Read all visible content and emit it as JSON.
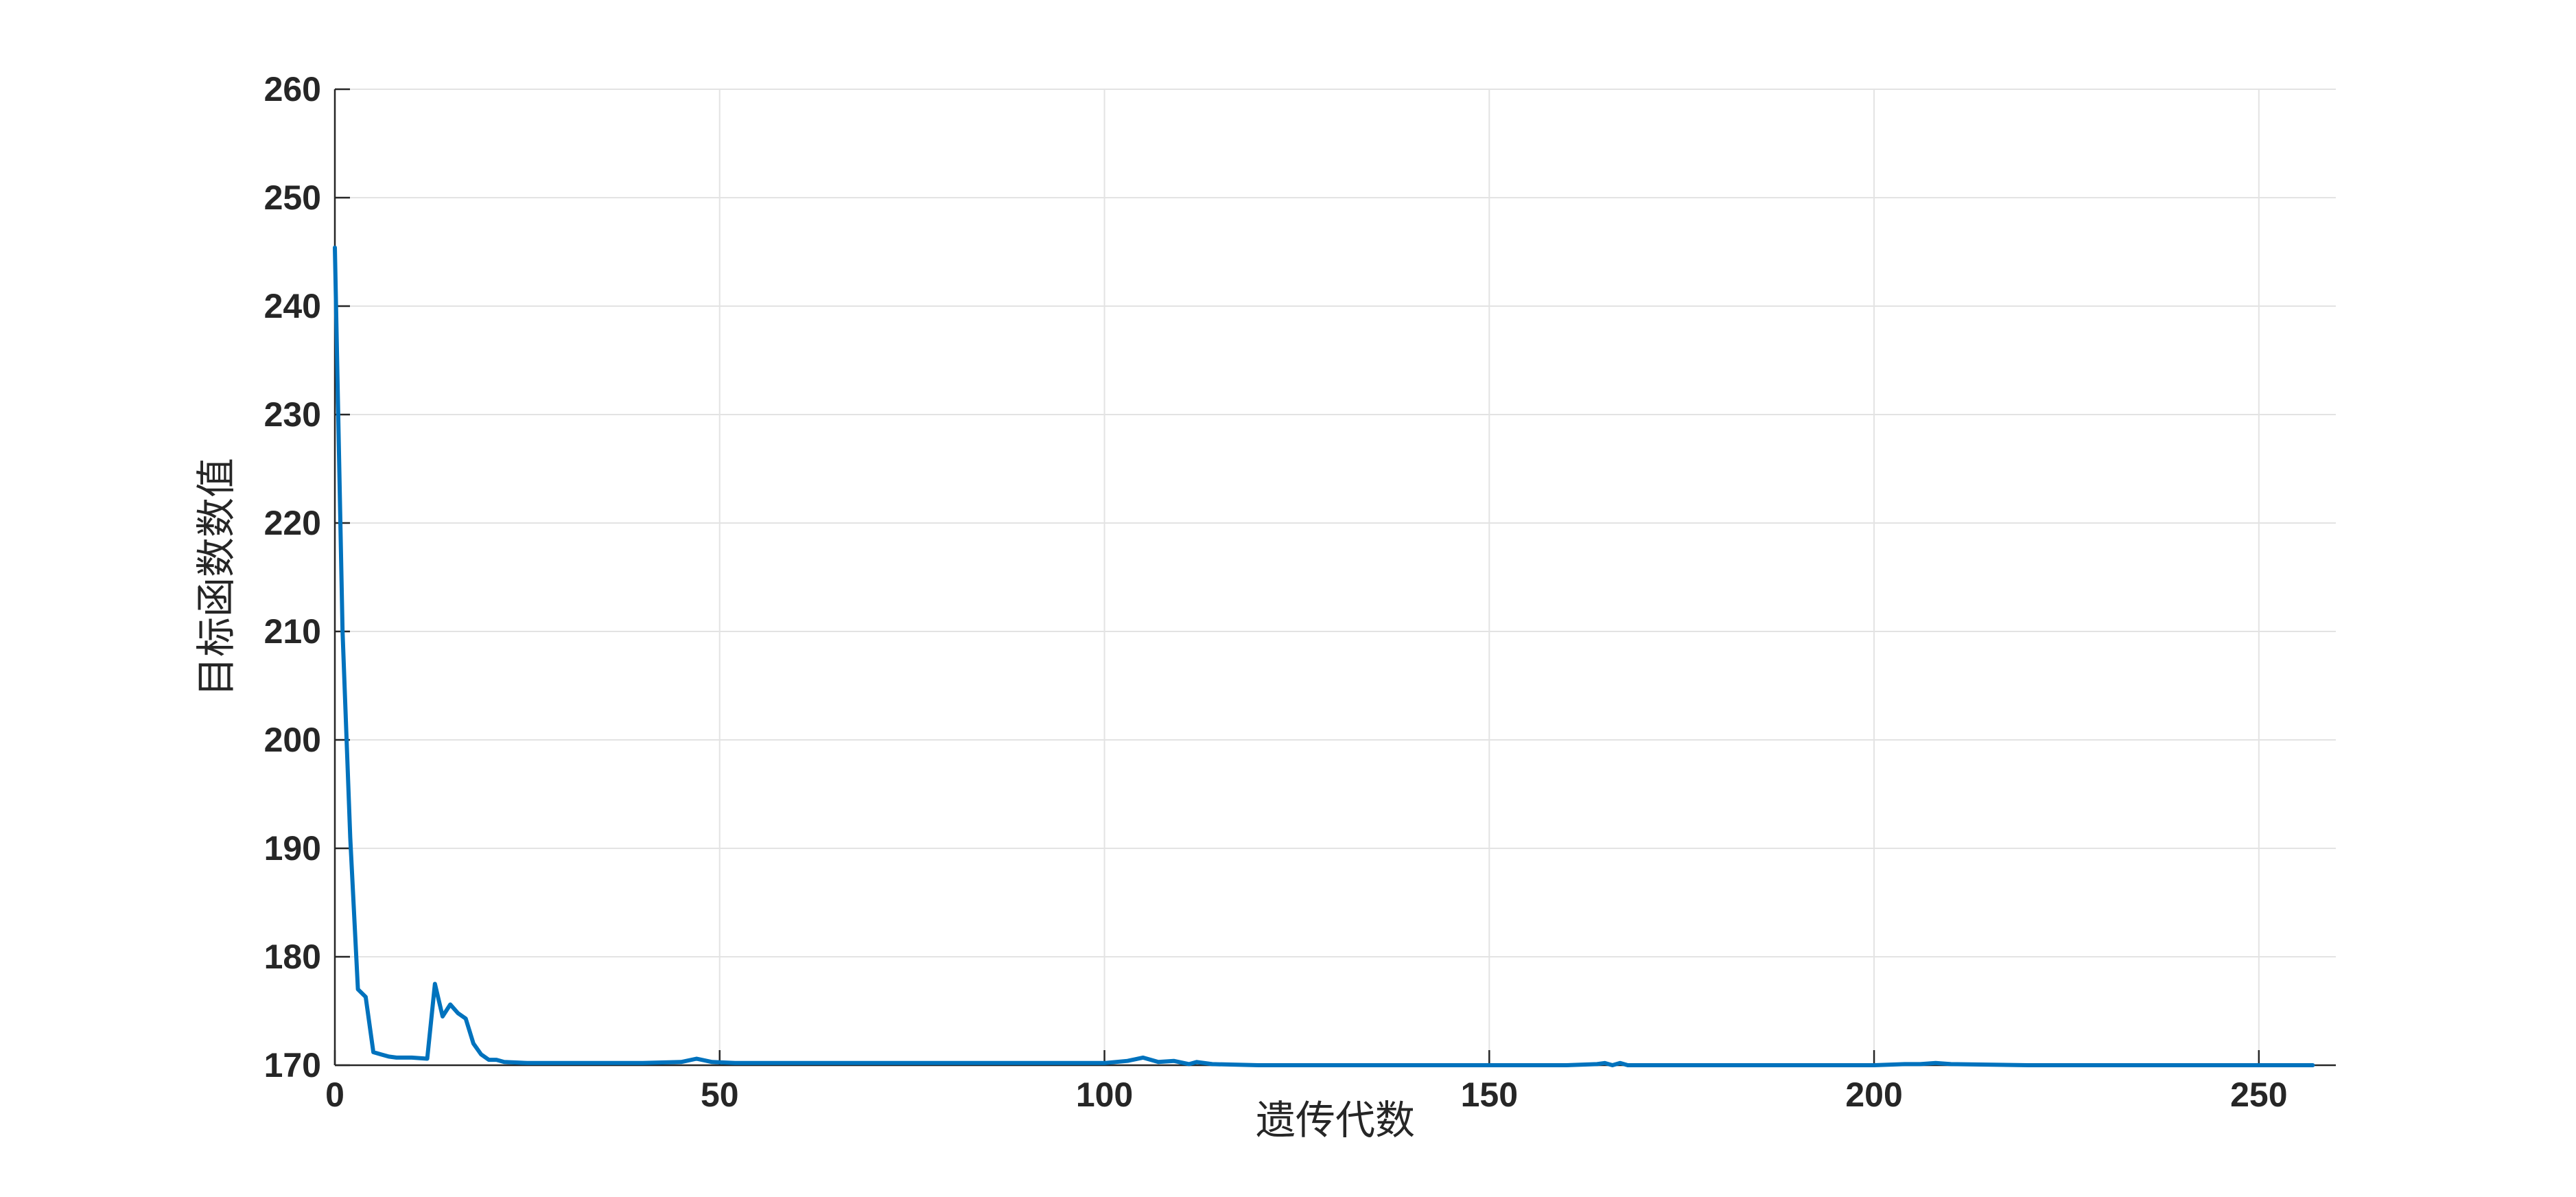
{
  "chart_data": {
    "type": "line",
    "title": "",
    "xlabel": "遗传代数",
    "ylabel": "目标函数数值",
    "xlim": [
      0,
      260
    ],
    "ylim": [
      170,
      260
    ],
    "xticks": [
      0,
      50,
      100,
      150,
      200,
      250
    ],
    "yticks": [
      170,
      180,
      190,
      200,
      210,
      220,
      230,
      240,
      250,
      260
    ],
    "xtick_labels": [
      "0",
      "50",
      "100",
      "150",
      "200",
      "250"
    ],
    "ytick_labels": [
      "170",
      "180",
      "190",
      "200",
      "210",
      "220",
      "230",
      "240",
      "250",
      "260"
    ],
    "grid": true,
    "line_color": "#0072BD",
    "series": [
      {
        "x": [
          0,
          1,
          2,
          3,
          4,
          5,
          6,
          7,
          8,
          10,
          12,
          13,
          14,
          15,
          16,
          17,
          18,
          19,
          20,
          21,
          22,
          25,
          30,
          35,
          40,
          45,
          47,
          49,
          52,
          60,
          70,
          80,
          90,
          100,
          103,
          105,
          107,
          109,
          111,
          112,
          114,
          120,
          130,
          140,
          150,
          160,
          164,
          165,
          166,
          167,
          168,
          170,
          180,
          190,
          200,
          204,
          206,
          208,
          210,
          220,
          230,
          240,
          250,
          257
        ],
        "y": [
          245.4,
          210.0,
          191.0,
          177.0,
          176.3,
          171.2,
          171.0,
          170.8,
          170.7,
          170.7,
          170.6,
          177.5,
          174.5,
          175.6,
          174.8,
          174.3,
          172.0,
          171.0,
          170.5,
          170.5,
          170.3,
          170.2,
          170.2,
          170.2,
          170.2,
          170.3,
          170.6,
          170.3,
          170.2,
          170.2,
          170.2,
          170.2,
          170.2,
          170.2,
          170.4,
          170.7,
          170.3,
          170.4,
          170.1,
          170.3,
          170.1,
          170.0,
          170.0,
          170.0,
          170.0,
          170.0,
          170.1,
          170.2,
          170.0,
          170.2,
          170.0,
          170.0,
          170.0,
          170.0,
          170.0,
          170.1,
          170.1,
          170.2,
          170.1,
          170.0,
          170.0,
          170.0,
          170.0,
          170.0
        ]
      }
    ]
  }
}
